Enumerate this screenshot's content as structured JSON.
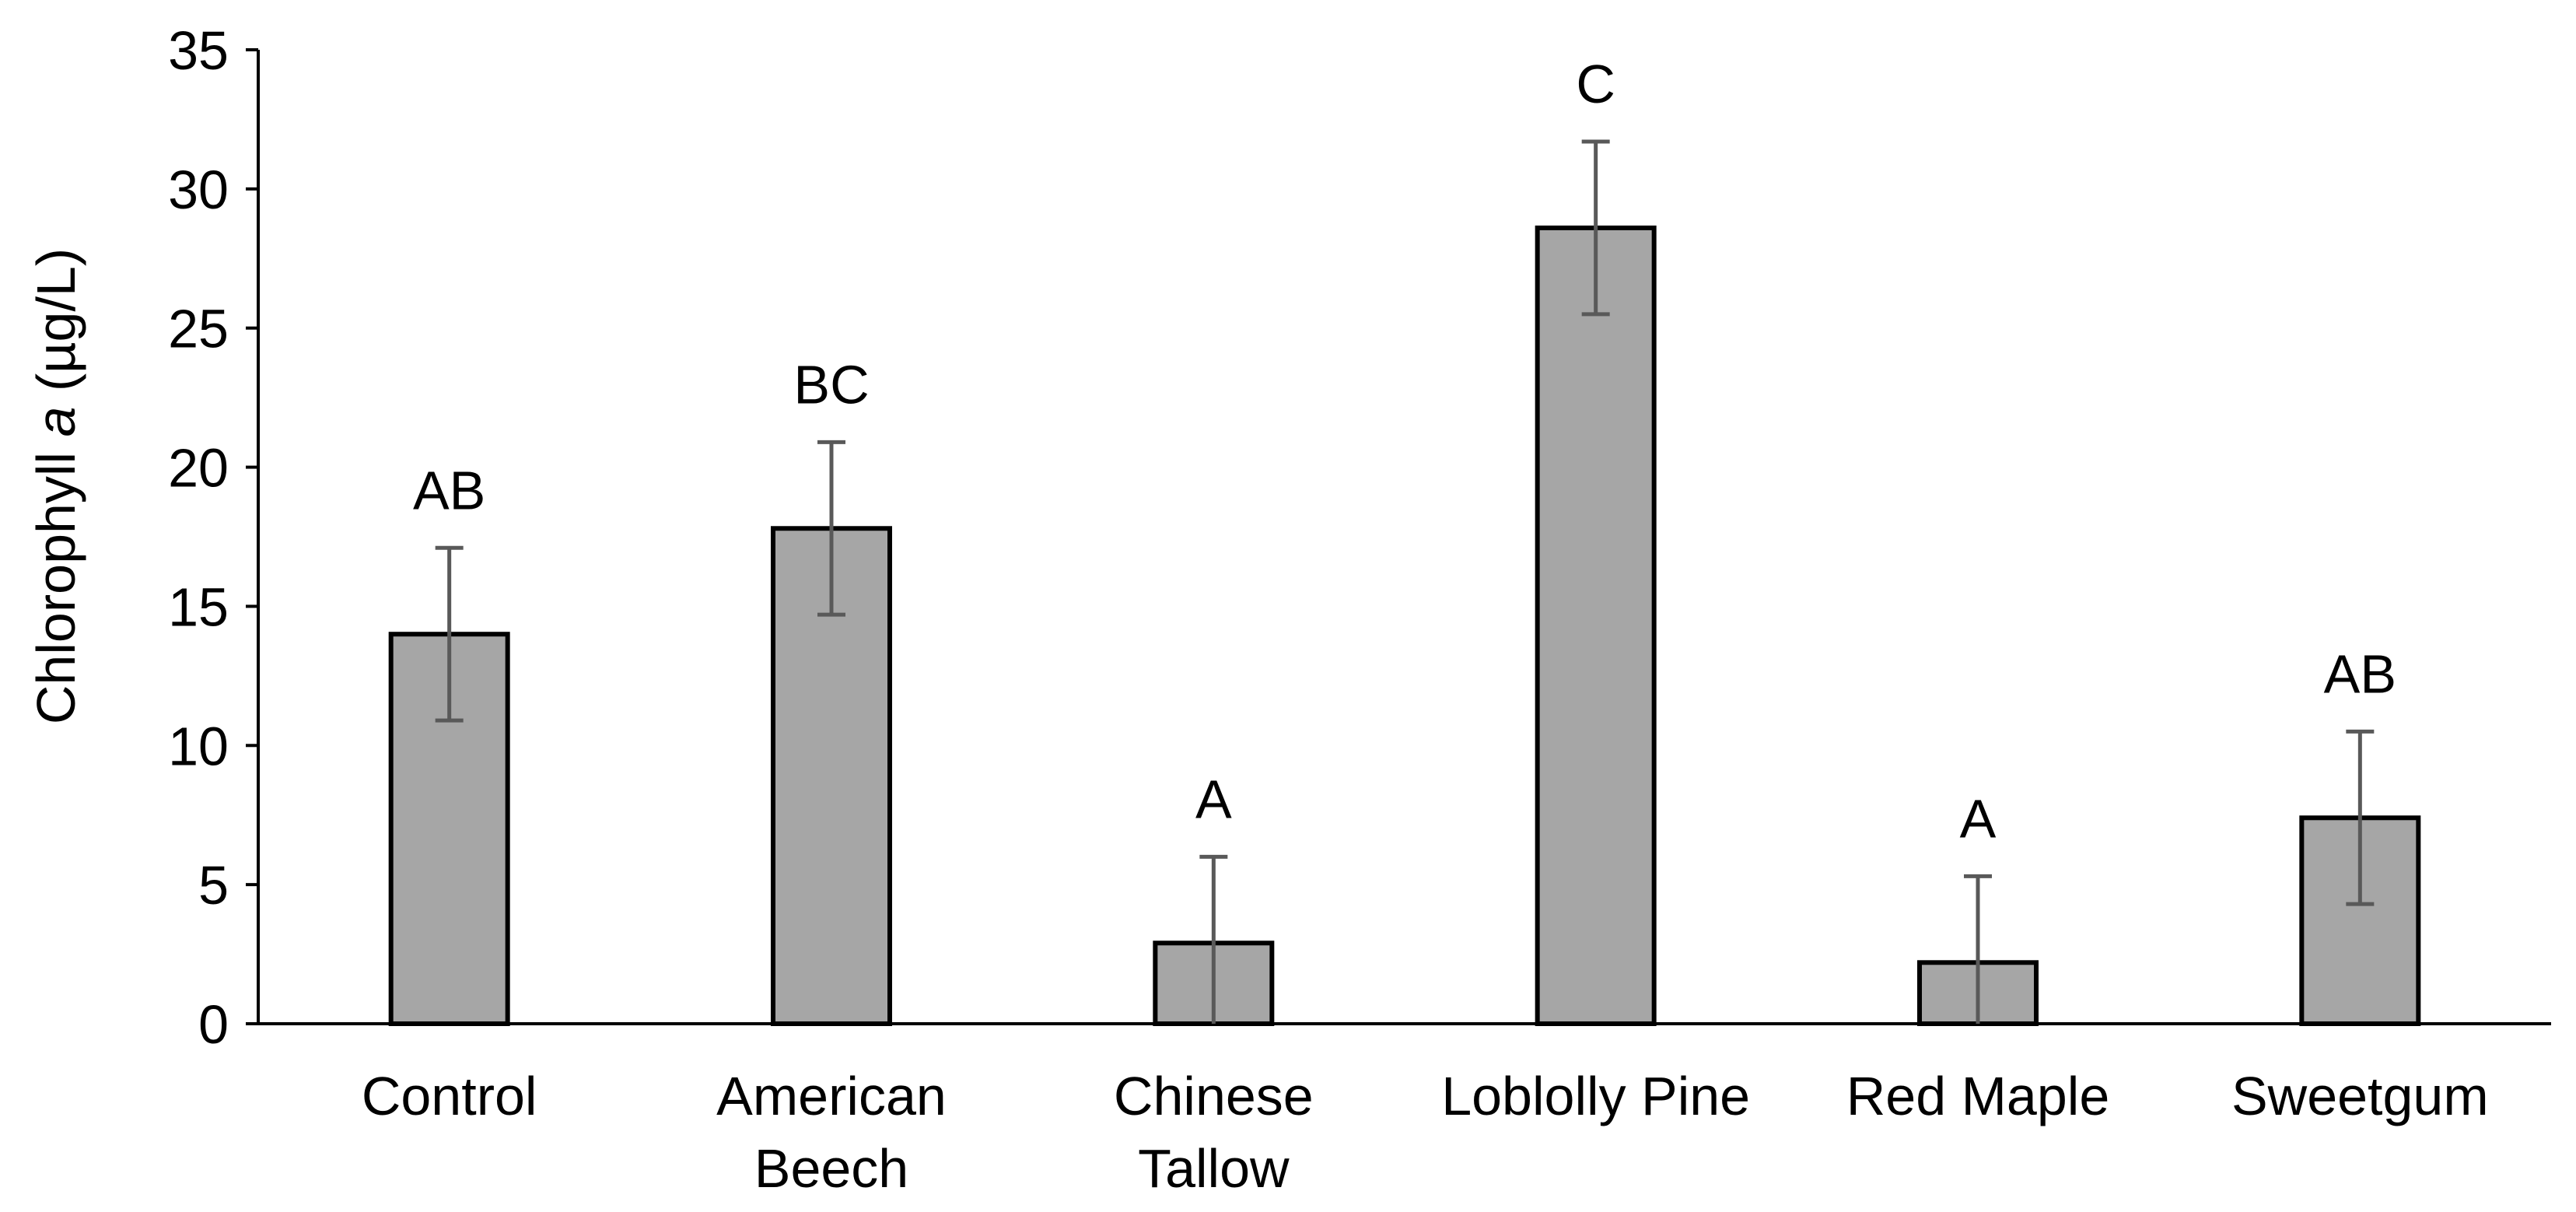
{
  "chart_data": {
    "type": "bar",
    "title": "",
    "xlabel": "",
    "ylabel": {
      "prefix": "Chlorophyll ",
      "italic": "a",
      "suffix": " (µg/L)"
    },
    "ylim": [
      0,
      35
    ],
    "yticks": [
      0,
      5,
      10,
      15,
      20,
      25,
      30,
      35
    ],
    "categories": [
      [
        "Control"
      ],
      [
        "American",
        "Beech"
      ],
      [
        "Chinese",
        "Tallow"
      ],
      [
        "Loblolly Pine"
      ],
      [
        "Red Maple"
      ],
      [
        "Sweetgum"
      ]
    ],
    "values": [
      14.0,
      17.8,
      2.9,
      28.6,
      2.2,
      7.4
    ],
    "errors": [
      3.1,
      3.1,
      3.1,
      3.1,
      3.1,
      3.1
    ],
    "significance_letters": [
      "AB",
      "BC",
      "A",
      "C",
      "A",
      "AB"
    ],
    "grid": false,
    "legend": "none",
    "bar_color": "#a6a6a6",
    "bar_edge_color": "#000000",
    "error_bar_color": "#595959"
  }
}
